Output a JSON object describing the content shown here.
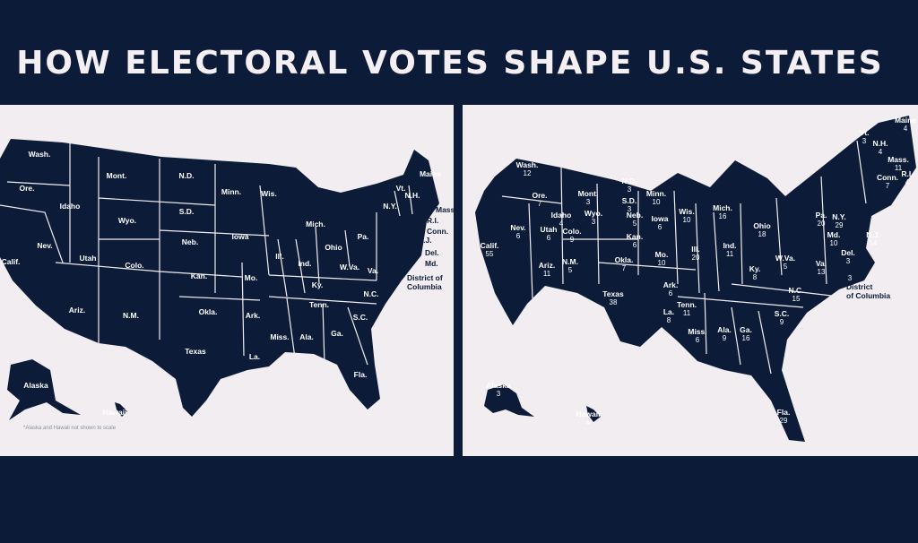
{
  "header": {
    "title": "HOW ELECTORAL VOTES SHAPE U.S. STATES"
  },
  "colors": {
    "background": "#0c1b38",
    "panel": "#f1edf0",
    "land": "#0c1b38"
  },
  "left_map": {
    "labels": [
      "Wash.",
      "Ore.",
      "Calif.",
      "Nev.",
      "Idaho",
      "Mont.",
      "Wyo.",
      "Utah",
      "Ariz.",
      "Colo.",
      "N.M.",
      "N.D.",
      "S.D.",
      "Neb.",
      "Kan.",
      "Okla.",
      "Texas",
      "Minn.",
      "Iowa",
      "Mo.",
      "Ark.",
      "La.",
      "Wis.",
      "Ill.",
      "Mich.",
      "Ind.",
      "Ohio",
      "Ky.",
      "Tenn.",
      "Miss.",
      "Ala.",
      "Ga.",
      "Fla.",
      "S.C.",
      "N.C.",
      "Va.",
      "W.Va.",
      "Pa.",
      "N.Y.",
      "Vt.",
      "N.H.",
      "Maine",
      "Mass.",
      "R.I.",
      "Conn.",
      "N.J.",
      "Del.",
      "Md.",
      "District of",
      "Columbia",
      "Alaska",
      "Hawaii"
    ],
    "note": "*Alaska and Hawaii not shown to scale"
  },
  "right_map": {
    "states": [
      {
        "name": "Wash.",
        "votes": "12"
      },
      {
        "name": "Ore.",
        "votes": "7"
      },
      {
        "name": "Calif.",
        "votes": "55"
      },
      {
        "name": "Nev.",
        "votes": "6"
      },
      {
        "name": "Idaho",
        "votes": "4"
      },
      {
        "name": "Mont.",
        "votes": "3"
      },
      {
        "name": "Wyo.",
        "votes": "3"
      },
      {
        "name": "Utah",
        "votes": "6"
      },
      {
        "name": "Ariz.",
        "votes": "11"
      },
      {
        "name": "Colo.",
        "votes": "9"
      },
      {
        "name": "N.M.",
        "votes": "5"
      },
      {
        "name": "N.D.",
        "votes": "3"
      },
      {
        "name": "S.D.",
        "votes": "3"
      },
      {
        "name": "Neb.",
        "votes": "5"
      },
      {
        "name": "Kan.",
        "votes": "6"
      },
      {
        "name": "Okla.",
        "votes": "7"
      },
      {
        "name": "Texas",
        "votes": "38"
      },
      {
        "name": "Minn.",
        "votes": "10"
      },
      {
        "name": "Iowa",
        "votes": "6"
      },
      {
        "name": "Mo.",
        "votes": "10"
      },
      {
        "name": "Ark.",
        "votes": "6"
      },
      {
        "name": "La.",
        "votes": "8"
      },
      {
        "name": "Wis.",
        "votes": "10"
      },
      {
        "name": "Ill.",
        "votes": "20"
      },
      {
        "name": "Mich.",
        "votes": "16"
      },
      {
        "name": "Ind.",
        "votes": "11"
      },
      {
        "name": "Ohio",
        "votes": "18"
      },
      {
        "name": "Ky.",
        "votes": "8"
      },
      {
        "name": "Tenn.",
        "votes": "11"
      },
      {
        "name": "Miss.",
        "votes": "6"
      },
      {
        "name": "Ala.",
        "votes": "9"
      },
      {
        "name": "Ga.",
        "votes": "16"
      },
      {
        "name": "Fla.",
        "votes": "29"
      },
      {
        "name": "S.C.",
        "votes": "9"
      },
      {
        "name": "N.C.",
        "votes": "15"
      },
      {
        "name": "Va.",
        "votes": "13"
      },
      {
        "name": "W.Va.",
        "votes": "5"
      },
      {
        "name": "Pa.",
        "votes": "20"
      },
      {
        "name": "N.Y.",
        "votes": "29"
      },
      {
        "name": "Vt.",
        "votes": "3"
      },
      {
        "name": "N.H.",
        "votes": "4"
      },
      {
        "name": "Maine",
        "votes": "4"
      },
      {
        "name": "Mass.",
        "votes": "11"
      },
      {
        "name": "R.I.",
        "votes": "4"
      },
      {
        "name": "Conn.",
        "votes": "7"
      },
      {
        "name": "N.J.",
        "votes": "14"
      },
      {
        "name": "Del.",
        "votes": "3"
      },
      {
        "name": "Md.",
        "votes": "10"
      },
      {
        "name": "Alaska",
        "votes": "3"
      },
      {
        "name": "Hawaii",
        "votes": "4"
      }
    ],
    "dc_label": [
      "District",
      "of Columbia"
    ],
    "dc_votes": "3"
  }
}
